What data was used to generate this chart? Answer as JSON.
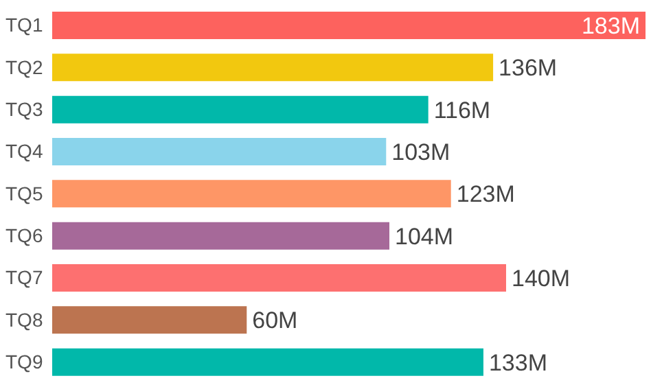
{
  "chart_data": {
    "type": "bar",
    "orientation": "horizontal",
    "categories": [
      "TQ1",
      "TQ2",
      "TQ3",
      "TQ4",
      "TQ5",
      "TQ6",
      "TQ7",
      "TQ8",
      "TQ9"
    ],
    "values": [
      183,
      136,
      116,
      103,
      123,
      104,
      140,
      60,
      133
    ],
    "value_labels": [
      "183M",
      "136M",
      "116M",
      "103M",
      "123M",
      "104M",
      "140M",
      "60M",
      "133M"
    ],
    "colors": [
      "#fd625e",
      "#f2c80f",
      "#01b8aa",
      "#8ad4eb",
      "#fe9666",
      "#a66999",
      "#fd7070",
      "#bc7450",
      "#01b8aa"
    ]
  }
}
